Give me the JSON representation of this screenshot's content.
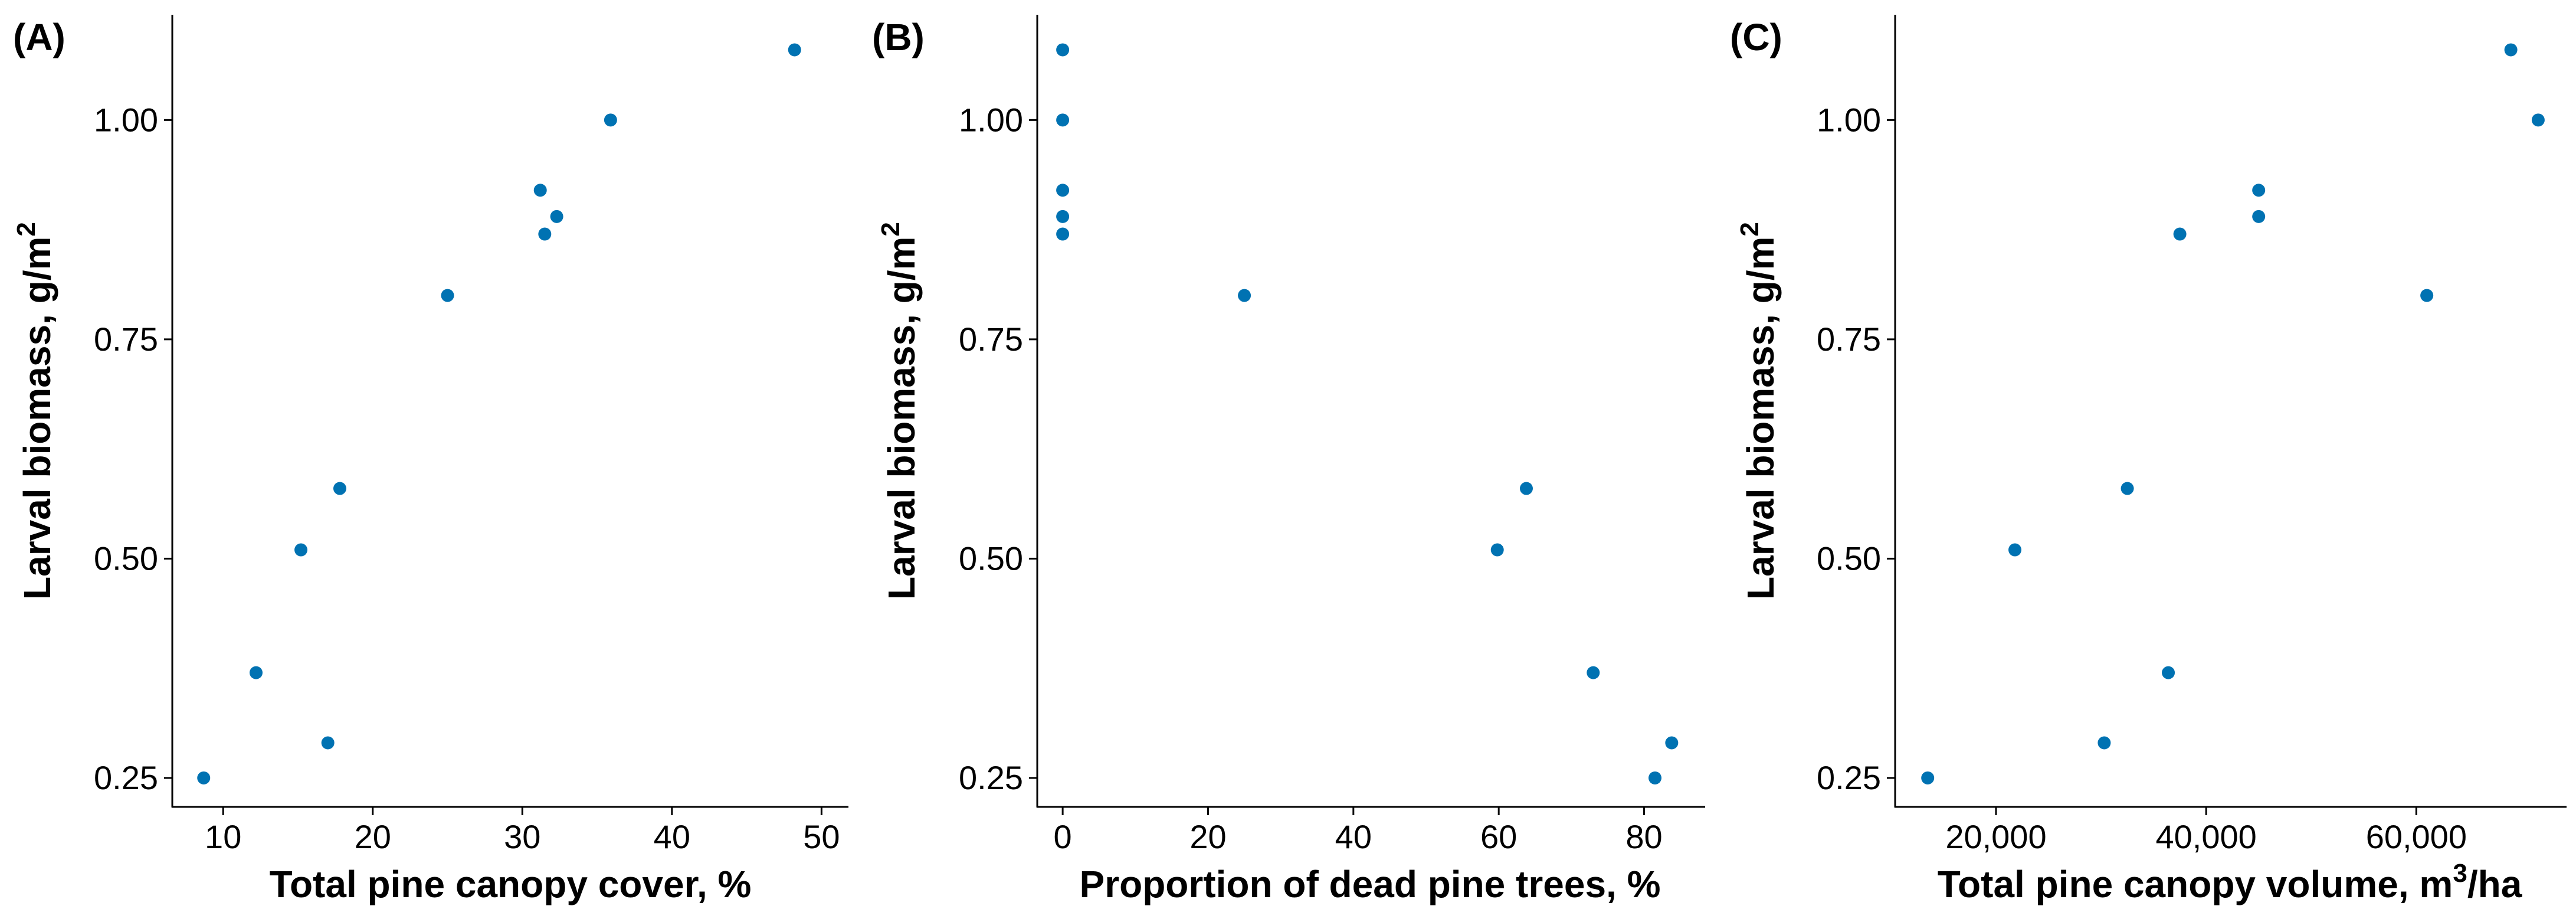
{
  "chart_data": [
    {
      "type": "scatter",
      "panel_label": "(A)",
      "xlabel": "Total pine canopy cover, %",
      "xlabel_sup": "",
      "xlabel_post": "",
      "ylabel": "Larval biomass, g/m",
      "ylabel_sup": "2",
      "xlim": [
        6.6,
        51.8
      ],
      "ylim": [
        0.217,
        1.12
      ],
      "xticks": [
        10,
        20,
        30,
        40,
        50
      ],
      "xtick_labels": [
        "10",
        "20",
        "30",
        "40",
        "50"
      ],
      "yticks": [
        0.25,
        0.5,
        0.75,
        1.0
      ],
      "ytick_labels": [
        "0.25",
        "0.50",
        "0.75",
        "1.00"
      ],
      "color": "#0072B2",
      "x": [
        8.7,
        12.2,
        17.0,
        15.2,
        17.8,
        25.0,
        31.5,
        31.2,
        32.3,
        35.9,
        48.2
      ],
      "y": [
        0.25,
        0.37,
        0.29,
        0.51,
        0.58,
        0.8,
        0.87,
        0.92,
        0.89,
        1.0,
        1.08
      ]
    },
    {
      "type": "scatter",
      "panel_label": "(B)",
      "xlabel": "Proportion of dead pine trees, %",
      "xlabel_sup": "",
      "xlabel_post": "",
      "ylabel": "Larval biomass, g/m",
      "ylabel_sup": "2",
      "xlim": [
        -3.5,
        88.4
      ],
      "ylim": [
        0.217,
        1.12
      ],
      "xticks": [
        0,
        20,
        40,
        60,
        80
      ],
      "xtick_labels": [
        "0",
        "20",
        "40",
        "60",
        "80"
      ],
      "yticks": [
        0.25,
        0.5,
        0.75,
        1.0
      ],
      "ytick_labels": [
        "0.25",
        "0.50",
        "0.75",
        "1.00"
      ],
      "color": "#0072B2",
      "x": [
        0,
        0,
        0,
        0,
        0,
        25.0,
        59.8,
        63.8,
        73.0,
        81.5,
        83.8
      ],
      "y": [
        1.08,
        1.0,
        0.92,
        0.89,
        0.87,
        0.8,
        0.51,
        0.58,
        0.37,
        0.25,
        0.29
      ],
      "x_note": ""
    },
    {
      "type": "scatter",
      "panel_label": "(C)",
      "xlabel": "Total pine canopy volume, m",
      "xlabel_sup": "3",
      "xlabel_post": "/ha",
      "ylabel": "Larval biomass, g/m",
      "ylabel_sup": "2",
      "xlim": [
        10400,
        74300
      ],
      "ylim": [
        0.217,
        1.12
      ],
      "xticks": [
        20000,
        40000,
        60000
      ],
      "xtick_labels": [
        "20,000",
        "40,000",
        "60,000"
      ],
      "yticks": [
        0.25,
        0.5,
        0.75,
        1.0
      ],
      "ytick_labels": [
        "0.25",
        "0.50",
        "0.75",
        "1.00"
      ],
      "color": "#0072B2",
      "x": [
        13500,
        21800,
        30300,
        36400,
        32500,
        37500,
        45000,
        45000,
        61000,
        69000,
        71600
      ],
      "y": [
        0.25,
        0.51,
        0.29,
        0.37,
        0.58,
        0.87,
        0.92,
        0.89,
        0.8,
        1.08,
        1.0
      ]
    }
  ]
}
